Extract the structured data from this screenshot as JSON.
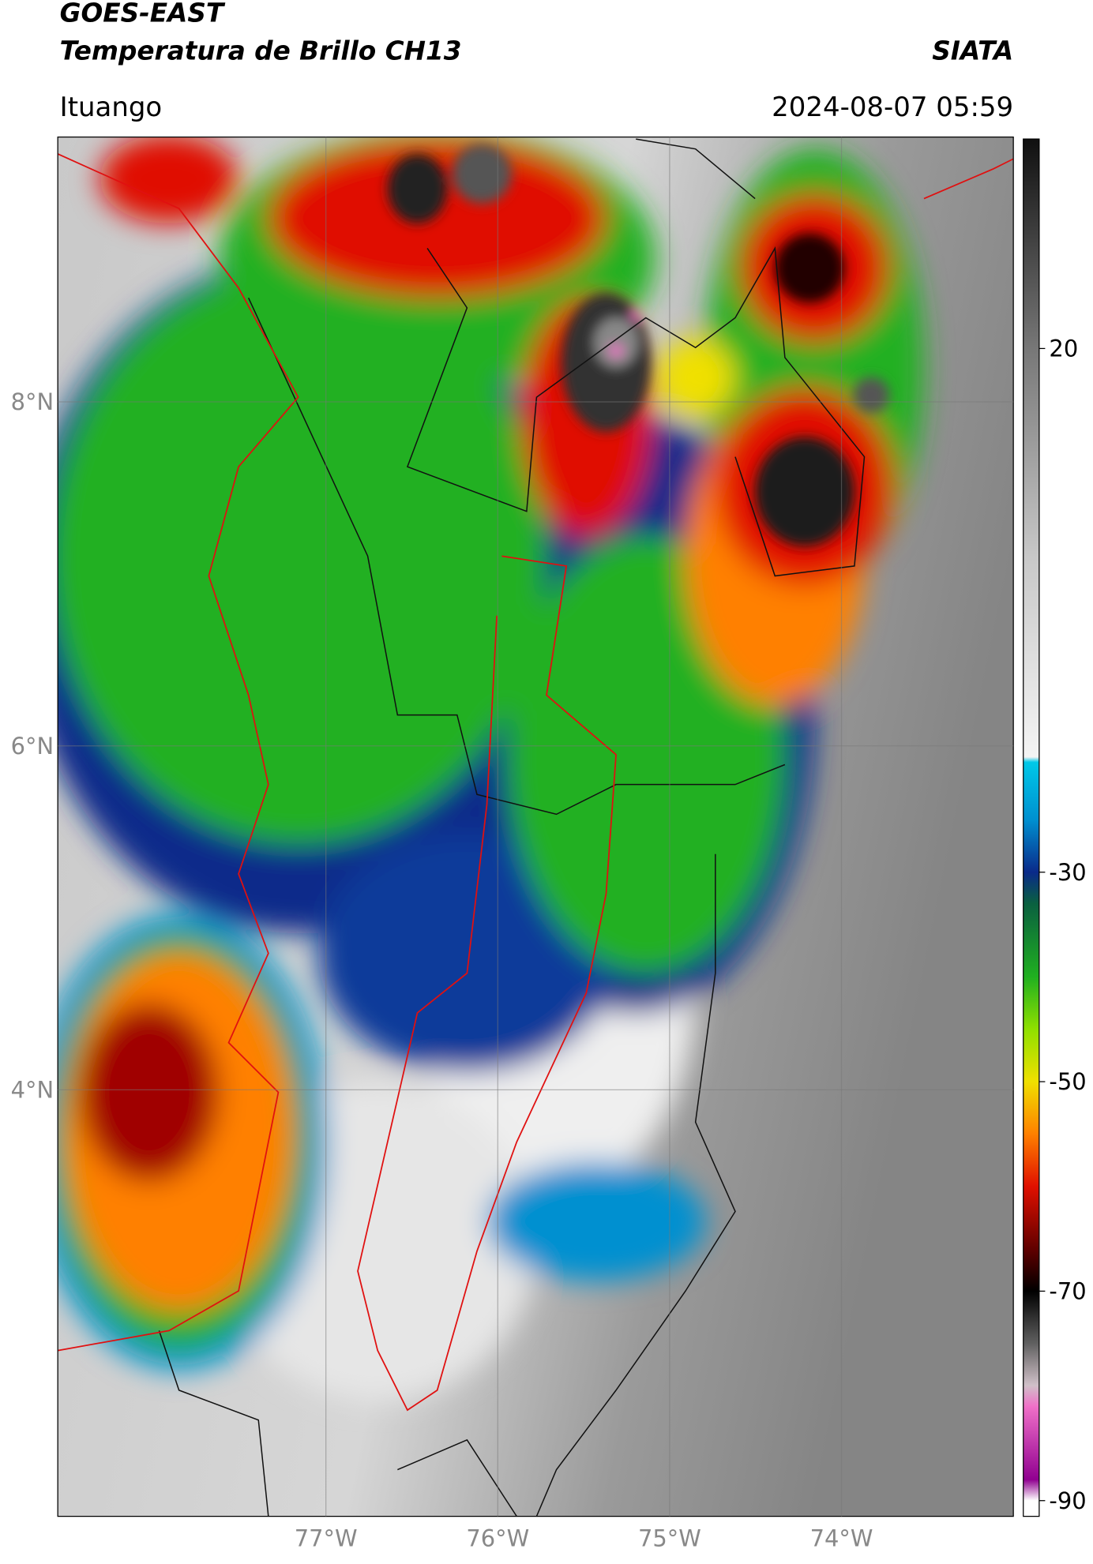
{
  "header": {
    "title": "GOES-EAST",
    "subtitle": "Temperatura de Brillo CH13",
    "source": "SIATA",
    "location": "Ituango",
    "timestamp": "2024-08-07 05:59"
  },
  "map": {
    "lonlim": [
      -78.56,
      -73.0
    ],
    "latlim": [
      1.52,
      9.54
    ],
    "grid": true,
    "lat_ticks": [
      {
        "value": 8,
        "label": "8°N"
      },
      {
        "value": 6,
        "label": "6°N"
      },
      {
        "value": 4,
        "label": "4°N"
      }
    ],
    "lon_ticks": [
      {
        "value": -77,
        "label": "77°W"
      },
      {
        "value": -76,
        "label": "76°W"
      },
      {
        "value": -75,
        "label": "75°W"
      },
      {
        "value": -74,
        "label": "74°W"
      }
    ]
  },
  "colorbar": {
    "lim": [
      -91.5,
      40
    ],
    "ticks": [
      20,
      -30,
      -50,
      -70,
      -90
    ],
    "stops": [
      [
        40,
        "#101010"
      ],
      [
        20,
        "#777777"
      ],
      [
        0,
        "#c8c8c8"
      ],
      [
        -19,
        "#f4f4f4"
      ],
      [
        -19.5,
        "#00c8e8"
      ],
      [
        -25,
        "#0090d0"
      ],
      [
        -30,
        "#0a2a8a"
      ],
      [
        -33,
        "#0a6040"
      ],
      [
        -40,
        "#20b020"
      ],
      [
        -45,
        "#90e000"
      ],
      [
        -50,
        "#f0e000"
      ],
      [
        -55,
        "#ff8000"
      ],
      [
        -60,
        "#e01000"
      ],
      [
        -66,
        "#600000"
      ],
      [
        -70,
        "#000000"
      ],
      [
        -75,
        "#606060"
      ],
      [
        -79,
        "#d0c0c8"
      ],
      [
        -81,
        "#f070c8"
      ],
      [
        -88,
        "#900090"
      ],
      [
        -90,
        "#ffffff"
      ],
      [
        -91.5,
        "#ffffff"
      ]
    ]
  }
}
